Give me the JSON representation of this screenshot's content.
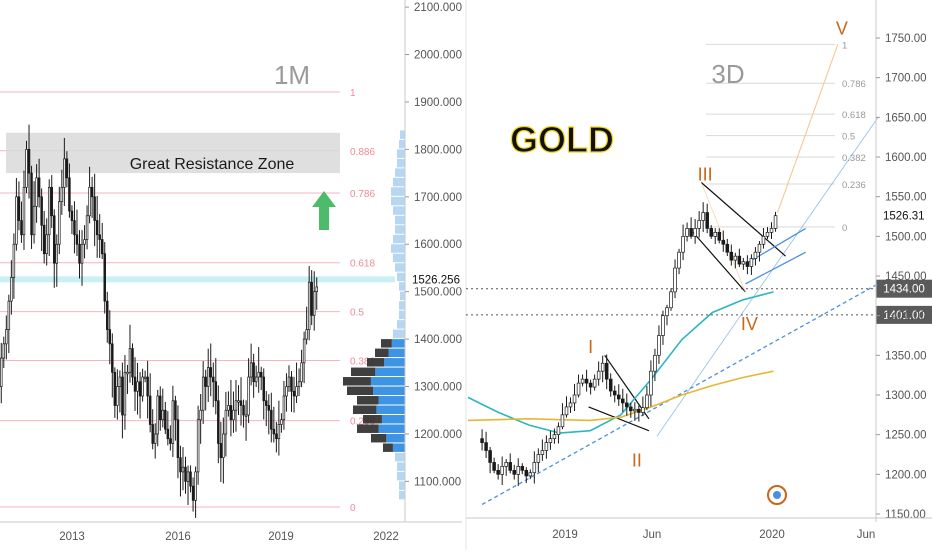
{
  "colors": {
    "bull": "#ffffff",
    "bear": "#1a1a1a",
    "wick": "#1a1a1a",
    "fib": "#f4b6bd",
    "fibLabel": "#f08a96",
    "vpBlue": "#3d93e4",
    "vpBlueLight": "#b6d6f2",
    "vpDark": "#2a2a2a",
    "cyanLine": "#2ab7c4",
    "goldLine": "#e5b733",
    "blueLine": "#4a8fe0",
    "waveLabel": "#c9661a",
    "axisText": "#555555",
    "gridLine": "#e6e6e6",
    "resistanceBox": "#dcdcdc",
    "arrow": "#4cbb6a",
    "priceLine": "#9fe4f0"
  },
  "chart_data": [
    {
      "type": "candlestick",
      "timeframe_label": "1M",
      "annotation": "Great Resistance Zone",
      "x_ticks": [
        "2013",
        "2016",
        "2019",
        "2022"
      ],
      "y_ticks": [
        2100,
        2000,
        1900,
        1800,
        1700,
        1600,
        1500,
        1400,
        1300,
        1200,
        1100
      ],
      "y_tick_labels": [
        "2100.000",
        "2000.000",
        "1900.000",
        "1800.000",
        "1700.000",
        "1600.000",
        "1500.000",
        "1400.000",
        "1300.000",
        "1200.000",
        "1100.000"
      ],
      "ylim": [
        1045,
        2125
      ],
      "last_price": "1526.256",
      "fib_levels": [
        {
          "label": "1",
          "value": 1921
        },
        {
          "label": "0.886",
          "value": 1797
        },
        {
          "label": "0.786",
          "value": 1708
        },
        {
          "label": "0.618",
          "value": 1561
        },
        {
          "label": "0.5",
          "value": 1458
        },
        {
          "label": "0.382",
          "value": 1355
        },
        {
          "label": "0.236",
          "value": 1228
        },
        {
          "label": "0",
          "value": 1046
        }
      ],
      "resistance_zone": [
        1750,
        1835
      ],
      "monthly_closes": [
        1360,
        1390,
        1420,
        1480,
        1530,
        1600,
        1700,
        1650,
        1620,
        1720,
        1800,
        1750,
        1620,
        1680,
        1740,
        1700,
        1640,
        1580,
        1620,
        1720,
        1660,
        1560,
        1600,
        1690,
        1720,
        1780,
        1740,
        1670,
        1650,
        1620,
        1600,
        1560,
        1600,
        1610,
        1660,
        1720,
        1700,
        1650,
        1620,
        1610,
        1580,
        1480,
        1420,
        1390,
        1330,
        1260,
        1300,
        1320,
        1240,
        1330,
        1330,
        1380,
        1320,
        1290,
        1310,
        1280,
        1320,
        1320,
        1280,
        1220,
        1180,
        1200,
        1280,
        1230,
        1250,
        1210,
        1190,
        1180,
        1270,
        1230,
        1150,
        1120,
        1130,
        1100,
        1120,
        1090,
        1060,
        1120,
        1230,
        1250,
        1320,
        1300,
        1340,
        1320,
        1310,
        1270,
        1180,
        1150,
        1200,
        1250,
        1260,
        1230,
        1250,
        1270,
        1270,
        1260,
        1240,
        1240,
        1320,
        1350,
        1310,
        1320,
        1330,
        1320,
        1270,
        1260,
        1250,
        1210,
        1200,
        1190,
        1220,
        1230,
        1280,
        1300,
        1320,
        1290,
        1280,
        1300,
        1310,
        1350,
        1400,
        1420,
        1520,
        1450,
        1500,
        1510
      ],
      "volume_profile": [
        {
          "price": 1070,
          "width": 6
        },
        {
          "price": 1090,
          "width": 6
        },
        {
          "price": 1110,
          "width": 8
        },
        {
          "price": 1130,
          "width": 8
        },
        {
          "price": 1150,
          "width": 10
        },
        {
          "price": 1170,
          "width": 22
        },
        {
          "price": 1190,
          "width": 34
        },
        {
          "price": 1210,
          "width": 48
        },
        {
          "price": 1230,
          "width": 42
        },
        {
          "price": 1250,
          "width": 52
        },
        {
          "price": 1270,
          "width": 48
        },
        {
          "price": 1290,
          "width": 58
        },
        {
          "price": 1310,
          "width": 62
        },
        {
          "price": 1330,
          "width": 54
        },
        {
          "price": 1350,
          "width": 38
        },
        {
          "price": 1370,
          "width": 30
        },
        {
          "price": 1390,
          "width": 24
        },
        {
          "price": 1410,
          "width": 12
        },
        {
          "price": 1430,
          "width": 8
        },
        {
          "price": 1450,
          "width": 6
        },
        {
          "price": 1470,
          "width": 6
        },
        {
          "price": 1490,
          "width": 5
        },
        {
          "price": 1510,
          "width": 6
        },
        {
          "price": 1530,
          "width": 8
        },
        {
          "price": 1550,
          "width": 10
        },
        {
          "price": 1570,
          "width": 12
        },
        {
          "price": 1590,
          "width": 14
        },
        {
          "price": 1610,
          "width": 12
        },
        {
          "price": 1630,
          "width": 10
        },
        {
          "price": 1650,
          "width": 10
        },
        {
          "price": 1670,
          "width": 12
        },
        {
          "price": 1690,
          "width": 14
        },
        {
          "price": 1710,
          "width": 14
        },
        {
          "price": 1730,
          "width": 12
        },
        {
          "price": 1750,
          "width": 10
        },
        {
          "price": 1770,
          "width": 8
        },
        {
          "price": 1790,
          "width": 8
        },
        {
          "price": 1810,
          "width": 6
        },
        {
          "price": 1830,
          "width": 5
        }
      ]
    },
    {
      "type": "candlestick",
      "title": "GOLD",
      "timeframe_label": "3D",
      "x_ticks": [
        "2019",
        "Jun",
        "2020",
        "Jun"
      ],
      "y_ticks": [
        1750,
        1700,
        1650,
        1600,
        1550,
        1500,
        1450,
        1400,
        1350,
        1300,
        1250,
        1200,
        1150
      ],
      "y_tick_labels": [
        "1750.00",
        "1700.00",
        "1650.00",
        "1600.00",
        "1550.00",
        "1500.00",
        "1450.00",
        "1400.00",
        "1350.00",
        "1300.00",
        "1250.00",
        "1200.00",
        "1150.00"
      ],
      "ylim": [
        1148,
        1772
      ],
      "last_price": "1526.31",
      "price_labels": [
        {
          "label": "1434.00",
          "value": 1434
        },
        {
          "label": "1401.00",
          "value": 1401
        }
      ],
      "fib_levels": [
        {
          "label": "1",
          "value": 1742
        },
        {
          "label": "0.786",
          "value": 1693
        },
        {
          "label": "0.618",
          "value": 1654
        },
        {
          "label": "0.5",
          "value": 1627
        },
        {
          "label": "0.382",
          "value": 1600
        },
        {
          "label": "0.236",
          "value": 1566
        },
        {
          "label": "0",
          "value": 1512
        }
      ],
      "wave_labels": [
        {
          "label": "I",
          "value": 1353
        },
        {
          "label": "II",
          "value": 1248
        },
        {
          "label": "III",
          "value": 1568
        },
        {
          "label": "IV",
          "value": 1420
        },
        {
          "label": "V",
          "value": 1752
        }
      ],
      "closes": [
        1240,
        1230,
        1215,
        1205,
        1200,
        1210,
        1215,
        1205,
        1200,
        1210,
        1205,
        1198,
        1202,
        1215,
        1225,
        1230,
        1240,
        1245,
        1250,
        1260,
        1275,
        1285,
        1290,
        1300,
        1315,
        1320,
        1315,
        1310,
        1320,
        1330,
        1340,
        1320,
        1305,
        1300,
        1295,
        1290,
        1285,
        1280,
        1282,
        1278,
        1284,
        1300,
        1330,
        1350,
        1375,
        1400,
        1410,
        1430,
        1460,
        1480,
        1500,
        1510,
        1500,
        1510,
        1520,
        1530,
        1510,
        1500,
        1505,
        1495,
        1490,
        1480,
        1470,
        1475,
        1465,
        1468,
        1462,
        1472,
        1480,
        1490,
        1500,
        1505,
        1510,
        1526
      ],
      "ma_cyan": [
        [
          0,
          1297
        ],
        [
          0.1,
          1278
        ],
        [
          0.2,
          1262
        ],
        [
          0.3,
          1252
        ],
        [
          0.4,
          1255
        ],
        [
          0.5,
          1275
        ],
        [
          0.6,
          1320
        ],
        [
          0.7,
          1370
        ],
        [
          0.8,
          1404
        ],
        [
          0.9,
          1420
        ],
        [
          1.0,
          1430
        ]
      ],
      "ma_gold": [
        [
          0,
          1268
        ],
        [
          0.2,
          1270
        ],
        [
          0.4,
          1268
        ],
        [
          0.5,
          1272
        ],
        [
          0.6,
          1285
        ],
        [
          0.7,
          1300
        ],
        [
          0.8,
          1312
        ],
        [
          0.9,
          1322
        ],
        [
          1.0,
          1330
        ]
      ]
    }
  ]
}
